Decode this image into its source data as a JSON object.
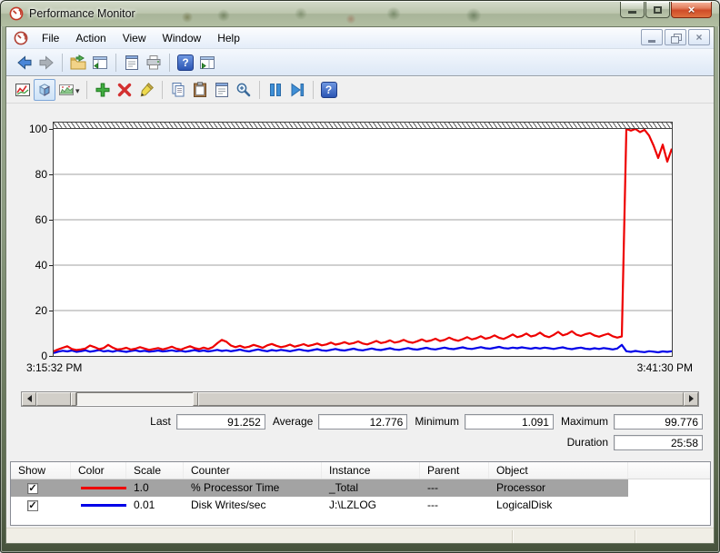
{
  "window": {
    "title": "Performance Monitor"
  },
  "menu": {
    "items": [
      "File",
      "Action",
      "View",
      "Window",
      "Help"
    ]
  },
  "icons": {
    "close_glyph": "×",
    "help_glyph": "?",
    "dropdown_caret": "▾",
    "check_glyph": "✓",
    "toolbar_main": [
      "back-icon",
      "forward-icon",
      "export-folder-icon",
      "show-hide-console-tree-icon",
      "properties-icon",
      "print-icon",
      "help-icon",
      "show-hide-action-pane-icon"
    ],
    "toolbar_graph": [
      "view-current-activity-icon",
      "view-log-data-icon",
      "change-graph-type-icon",
      "add-icon",
      "delete-icon",
      "highlight-icon",
      "copy-properties-icon",
      "paste-counter-list-icon",
      "properties-icon",
      "zoom-icon",
      "freeze-display-icon",
      "update-data-icon",
      "help-icon"
    ]
  },
  "chart": {
    "y_ticks": [
      "100",
      "80",
      "60",
      "40",
      "20",
      "0"
    ],
    "start_time": "3:15:32 PM",
    "end_time": "3:41:30 PM"
  },
  "chart_data": {
    "type": "line",
    "title": "",
    "xlabel": "",
    "ylabel": "",
    "ylim": [
      0,
      100
    ],
    "x_range": [
      "3:15:32 PM",
      "3:41:30 PM"
    ],
    "grid": true,
    "series": [
      {
        "name": "% Processor Time",
        "color": "#ee0000",
        "values": [
          2.1,
          2.9,
          3.6,
          4.3,
          3.1,
          2.6,
          2.9,
          3.3,
          4.6,
          3.9,
          3.0,
          3.5,
          4.9,
          3.7,
          2.9,
          3.1,
          3.6,
          2.8,
          3.2,
          3.9,
          3.3,
          2.7,
          3.1,
          3.5,
          2.9,
          3.4,
          4.1,
          3.2,
          2.8,
          3.6,
          4.3,
          3.5,
          3.0,
          3.7,
          3.1,
          3.9,
          5.6,
          7.1,
          6.3,
          4.6,
          3.9,
          4.5,
          3.7,
          4.1,
          4.9,
          4.3,
          3.6,
          4.7,
          5.3,
          4.5,
          3.9,
          4.3,
          5.0,
          4.1,
          4.6,
          5.2,
          4.4,
          4.9,
          5.5,
          4.7,
          5.1,
          5.9,
          5.0,
          5.4,
          6.1,
          5.3,
          5.7,
          6.4,
          5.5,
          5.1,
          5.8,
          6.6,
          5.7,
          6.1,
          6.9,
          5.9,
          6.3,
          7.1,
          6.2,
          5.8,
          6.5,
          7.3,
          6.4,
          6.8,
          7.6,
          6.6,
          7.1,
          8.1,
          7.2,
          6.7,
          7.4,
          8.3,
          7.3,
          7.8,
          8.7,
          7.6,
          8.1,
          9.1,
          8.0,
          7.5,
          8.4,
          9.5,
          8.3,
          8.8,
          9.9,
          8.6,
          9.1,
          10.3,
          8.9,
          8.3,
          9.3,
          10.6,
          9.1,
          9.7,
          10.9,
          9.4,
          8.8,
          9.6,
          10.1,
          9.0,
          8.5,
          9.2,
          9.8,
          8.7,
          8.1,
          8.6,
          100,
          99.3,
          100,
          98.6,
          99.6,
          97.1,
          92.6,
          87.2,
          93.1,
          85.6,
          91.3
        ]
      },
      {
        "name": "Disk Writes/sec",
        "color": "#0000e8",
        "values": [
          1.3,
          1.9,
          2.3,
          2.0,
          2.4,
          1.8,
          2.1,
          2.5,
          1.9,
          2.2,
          2.6,
          2.0,
          2.3,
          1.9,
          2.4,
          2.1,
          1.8,
          2.2,
          2.5,
          2.0,
          2.3,
          1.9,
          2.1,
          2.4,
          2.0,
          2.2,
          2.5,
          2.1,
          2.3,
          1.9,
          2.2,
          2.6,
          2.1,
          2.4,
          2.0,
          2.3,
          2.7,
          2.2,
          2.5,
          2.1,
          2.4,
          2.8,
          2.3,
          2.0,
          2.5,
          2.9,
          2.4,
          2.1,
          2.6,
          2.3,
          2.7,
          2.4,
          2.1,
          2.5,
          2.9,
          2.5,
          2.2,
          2.6,
          3.0,
          2.5,
          2.3,
          2.7,
          3.1,
          2.6,
          2.4,
          2.8,
          3.2,
          2.7,
          2.5,
          2.9,
          3.3,
          2.8,
          2.6,
          3.0,
          3.4,
          2.9,
          2.7,
          3.1,
          3.5,
          3.0,
          2.8,
          3.2,
          3.6,
          3.1,
          2.9,
          3.3,
          3.7,
          3.2,
          3.0,
          3.4,
          3.8,
          3.3,
          3.1,
          3.5,
          3.9,
          3.4,
          3.2,
          3.6,
          4.0,
          3.5,
          3.3,
          3.7,
          3.4,
          3.8,
          3.5,
          3.2,
          3.6,
          3.3,
          3.7,
          3.4,
          3.1,
          3.5,
          3.8,
          3.3,
          3.0,
          3.4,
          3.7,
          3.2,
          3.0,
          3.4,
          3.1,
          3.5,
          3.2,
          2.9,
          3.3,
          4.9,
          2.1,
          1.8,
          2.2,
          1.9,
          1.7,
          2.1,
          1.9,
          1.6,
          2.0,
          1.8,
          2.1
        ]
      }
    ]
  },
  "stats": {
    "last_label": "Last",
    "last_value": "91.252",
    "average_label": "Average",
    "average_value": "12.776",
    "minimum_label": "Minimum",
    "minimum_value": "1.091",
    "maximum_label": "Maximum",
    "maximum_value": "99.776",
    "duration_label": "Duration",
    "duration_value": "25:58"
  },
  "table": {
    "columns": [
      "Show",
      "Color",
      "Scale",
      "Counter",
      "Instance",
      "Parent",
      "Object"
    ],
    "rows": [
      {
        "show": true,
        "color": "#ee0000",
        "scale": "1.0",
        "counter": "% Processor Time",
        "instance": "_Total",
        "parent": "---",
        "object": "Processor",
        "selected": true
      },
      {
        "show": true,
        "color": "#0000e8",
        "scale": "0.01",
        "counter": "Disk Writes/sec",
        "instance": "J:\\LZLOG",
        "parent": "---",
        "object": "LogicalDisk",
        "selected": false
      }
    ]
  }
}
